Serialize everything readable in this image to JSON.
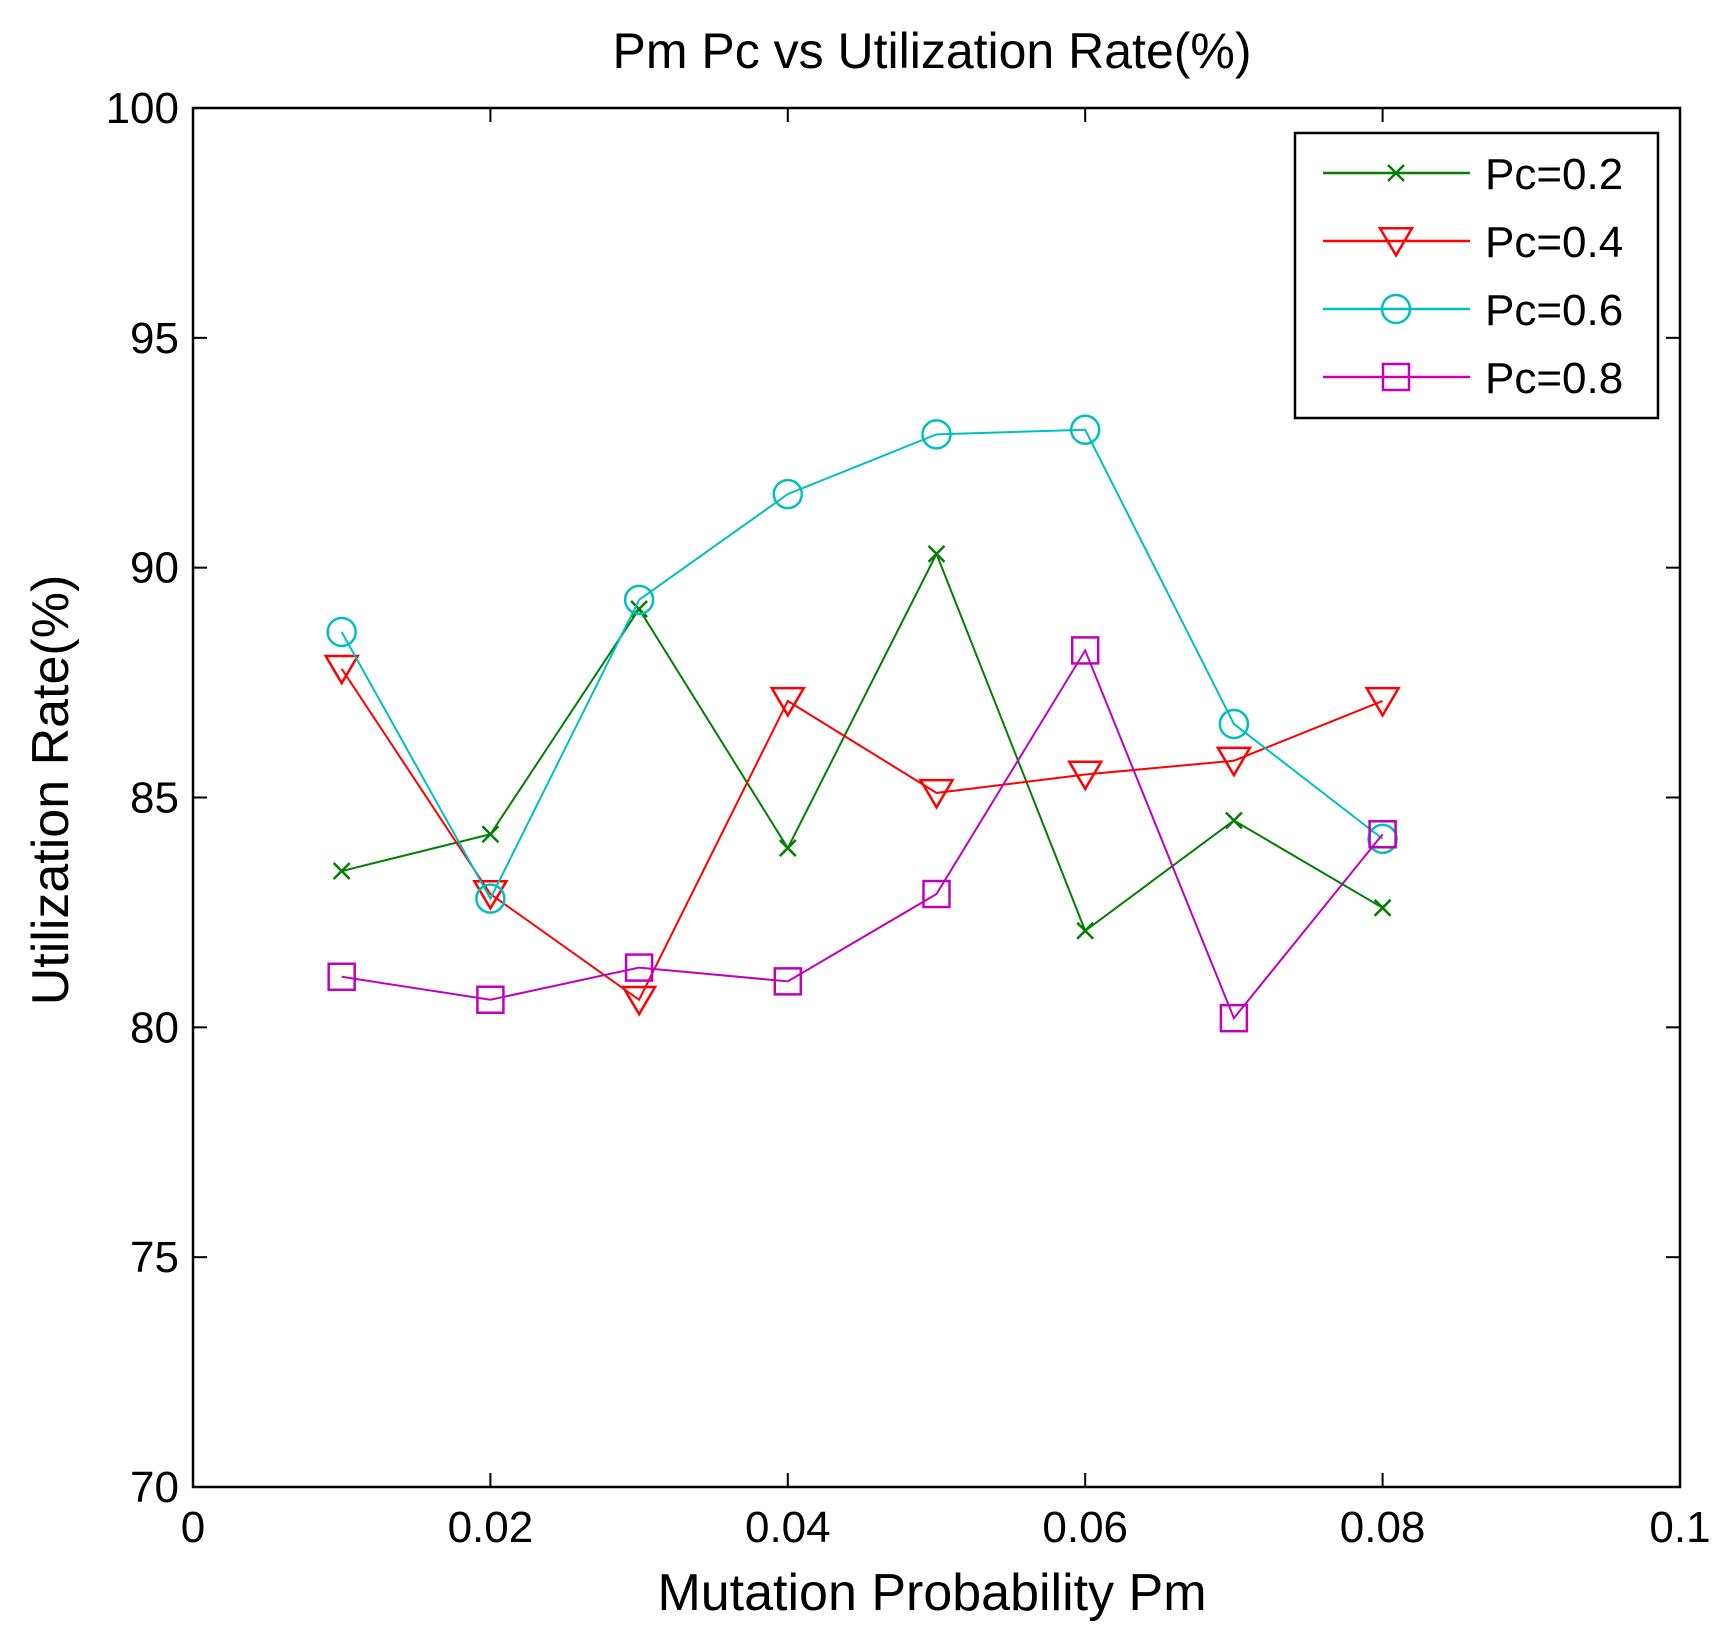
{
  "chart_data": {
    "type": "line",
    "title": "Pm Pc vs Utilization Rate(%)",
    "xlabel": "Mutation Probability Pm",
    "ylabel": "Utilization Rate(%)",
    "xlim": [
      0,
      0.1
    ],
    "ylim": [
      70,
      100
    ],
    "x_ticks": [
      0,
      0.02,
      0.04,
      0.06,
      0.08,
      0.1
    ],
    "x_tick_labels": [
      "0",
      "0.02",
      "0.04",
      "0.06",
      "0.08",
      "0.1"
    ],
    "y_ticks": [
      70,
      75,
      80,
      85,
      90,
      95,
      100
    ],
    "y_tick_labels": [
      "70",
      "75",
      "80",
      "85",
      "90",
      "95",
      "100"
    ],
    "grid": false,
    "legend_position": "top-right",
    "x": [
      0.01,
      0.02,
      0.03,
      0.04,
      0.05,
      0.06,
      0.07,
      0.08
    ],
    "series": [
      {
        "name": "Pc=0.2",
        "marker": "x",
        "color": "#007f00",
        "values": [
          83.4,
          84.2,
          89.1,
          83.9,
          90.3,
          82.1,
          84.5,
          82.6
        ]
      },
      {
        "name": "Pc=0.4",
        "marker": "triangle-down",
        "color": "#ff0000",
        "values": [
          87.8,
          82.9,
          80.6,
          87.1,
          85.1,
          85.5,
          85.8,
          87.1
        ]
      },
      {
        "name": "Pc=0.6",
        "marker": "circle",
        "color": "#00bfbf",
        "values": [
          88.6,
          82.8,
          89.3,
          91.6,
          92.9,
          93.0,
          86.6,
          84.1
        ]
      },
      {
        "name": "Pc=0.8",
        "marker": "square",
        "color": "#bf00bf",
        "values": [
          81.1,
          80.6,
          81.3,
          81.0,
          82.9,
          88.2,
          80.2,
          84.2
        ]
      }
    ]
  }
}
